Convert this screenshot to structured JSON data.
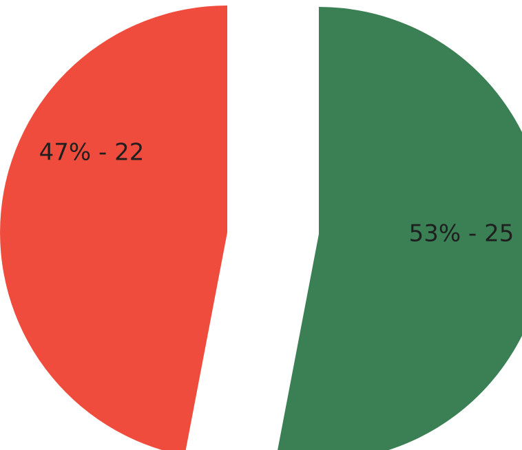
{
  "chart_data": {
    "type": "pie",
    "title": "",
    "slices": [
      {
        "label": "47% - 22",
        "percent": 47,
        "value": 22,
        "color": "#ef4c3d"
      },
      {
        "label": "53% - 25",
        "percent": 53,
        "value": 25,
        "color": "#3b8054"
      }
    ],
    "exploded": true
  }
}
